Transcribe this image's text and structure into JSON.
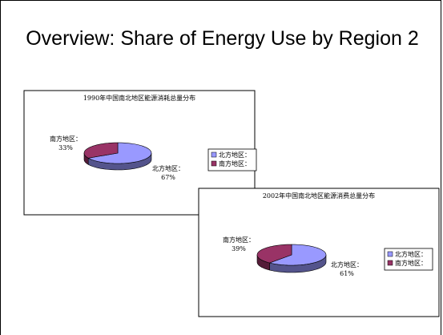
{
  "title": "Overview: Share of Energy Use by Region 2",
  "chart_data": [
    {
      "type": "pie",
      "title": "1990年中国南北地区能源消耗总量分布",
      "categories": [
        "北方地区：",
        "南方地区："
      ],
      "values": [
        67,
        33
      ],
      "value_labels": [
        "67%",
        "33%"
      ],
      "colors": [
        "#9999ff",
        "#993366"
      ],
      "legend": "right"
    },
    {
      "type": "pie",
      "title": "2002年中国南北地区能源消费总量分布",
      "categories": [
        "北方地区：",
        "南方地区："
      ],
      "values": [
        61,
        39
      ],
      "value_labels": [
        "61%",
        "39%"
      ],
      "colors": [
        "#9999ff",
        "#993366"
      ],
      "legend": "right"
    }
  ]
}
